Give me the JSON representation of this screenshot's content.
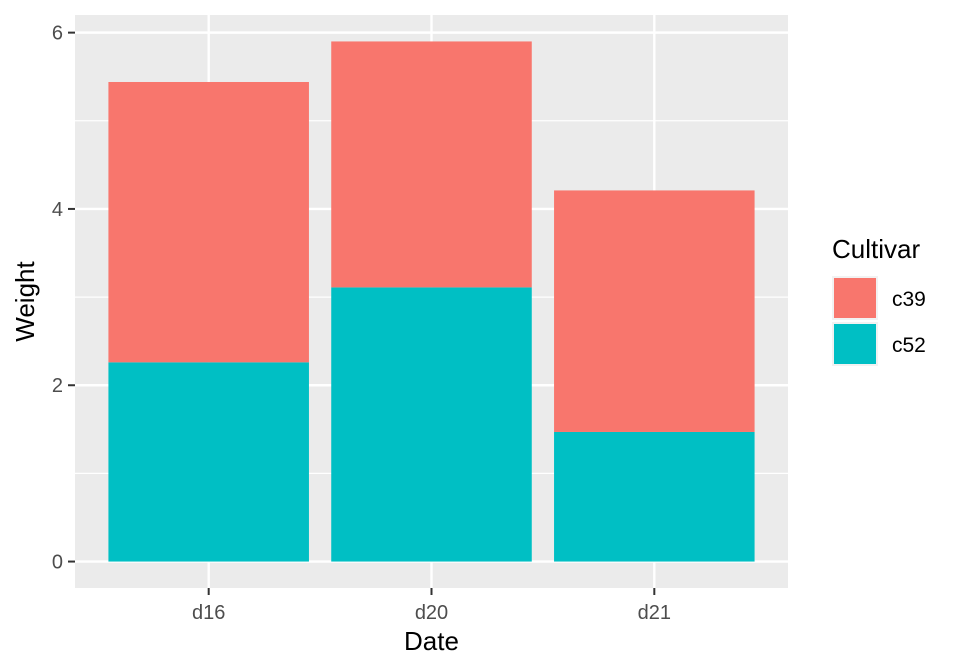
{
  "chart_data": {
    "type": "bar",
    "stacked": true,
    "categories": [
      "d16",
      "d20",
      "d21"
    ],
    "series": [
      {
        "name": "c52",
        "color": "#00BFC4",
        "values": [
          2.26,
          3.11,
          1.47
        ]
      },
      {
        "name": "c39",
        "color": "#F8766D",
        "values": [
          3.18,
          2.79,
          2.74
        ]
      }
    ],
    "xlabel": "Date",
    "ylabel": "Weight",
    "ylim": [
      -0.3,
      6.2
    ],
    "yticks": [
      0,
      2,
      4,
      6
    ],
    "ytick_labels": [
      "0",
      "2",
      "4",
      "6"
    ],
    "grid": true,
    "panel_background": "#EBEBEB",
    "legend": {
      "title": "Cultivar",
      "position": "right",
      "entries": [
        {
          "label": "c39",
          "color": "#F8766D"
        },
        {
          "label": "c52",
          "color": "#00BFC4"
        }
      ]
    }
  }
}
